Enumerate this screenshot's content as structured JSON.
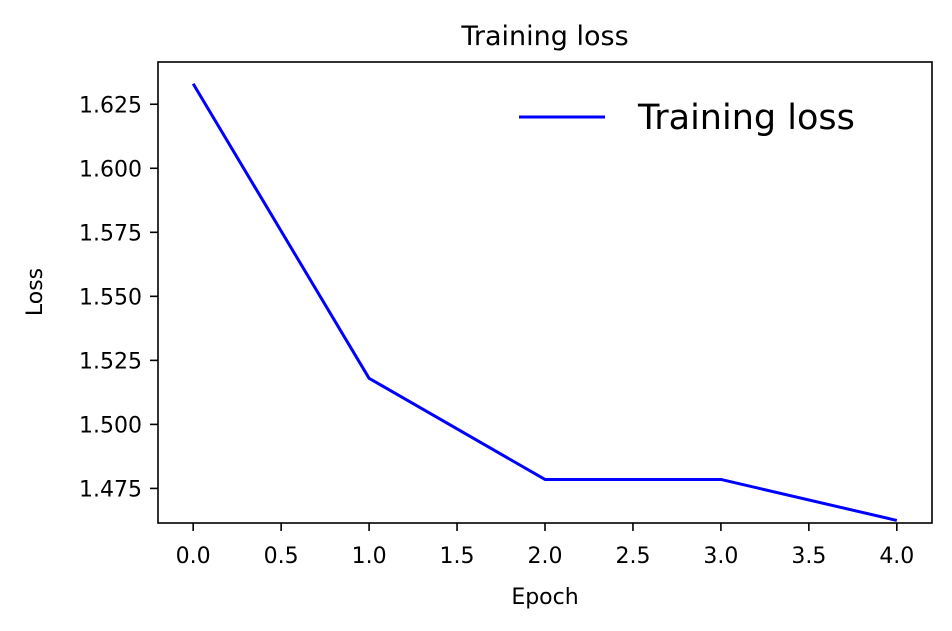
{
  "chart_data": {
    "type": "line",
    "title": "Training loss",
    "xlabel": "Epoch",
    "ylabel": "Loss",
    "xlim": [
      -0.2,
      4.2
    ],
    "ylim": [
      1.4615,
      1.6415
    ],
    "x_ticks": [
      0.0,
      0.5,
      1.0,
      1.5,
      2.0,
      2.5,
      3.0,
      3.5,
      4.0
    ],
    "x_tick_labels": [
      "0.0",
      "0.5",
      "1.0",
      "1.5",
      "2.0",
      "2.5",
      "3.0",
      "3.5",
      "4.0"
    ],
    "y_ticks": [
      1.475,
      1.5,
      1.525,
      1.55,
      1.575,
      1.6,
      1.625
    ],
    "y_tick_labels": [
      "1.475",
      "1.500",
      "1.525",
      "1.550",
      "1.575",
      "1.600",
      "1.625"
    ],
    "grid": false,
    "legend_position": "top-right",
    "series": [
      {
        "name": "Training loss",
        "color": "#0000ff",
        "x": [
          0,
          1,
          2,
          3,
          4
        ],
        "y": [
          1.633,
          1.518,
          1.4785,
          1.4785,
          1.4625
        ]
      }
    ]
  }
}
